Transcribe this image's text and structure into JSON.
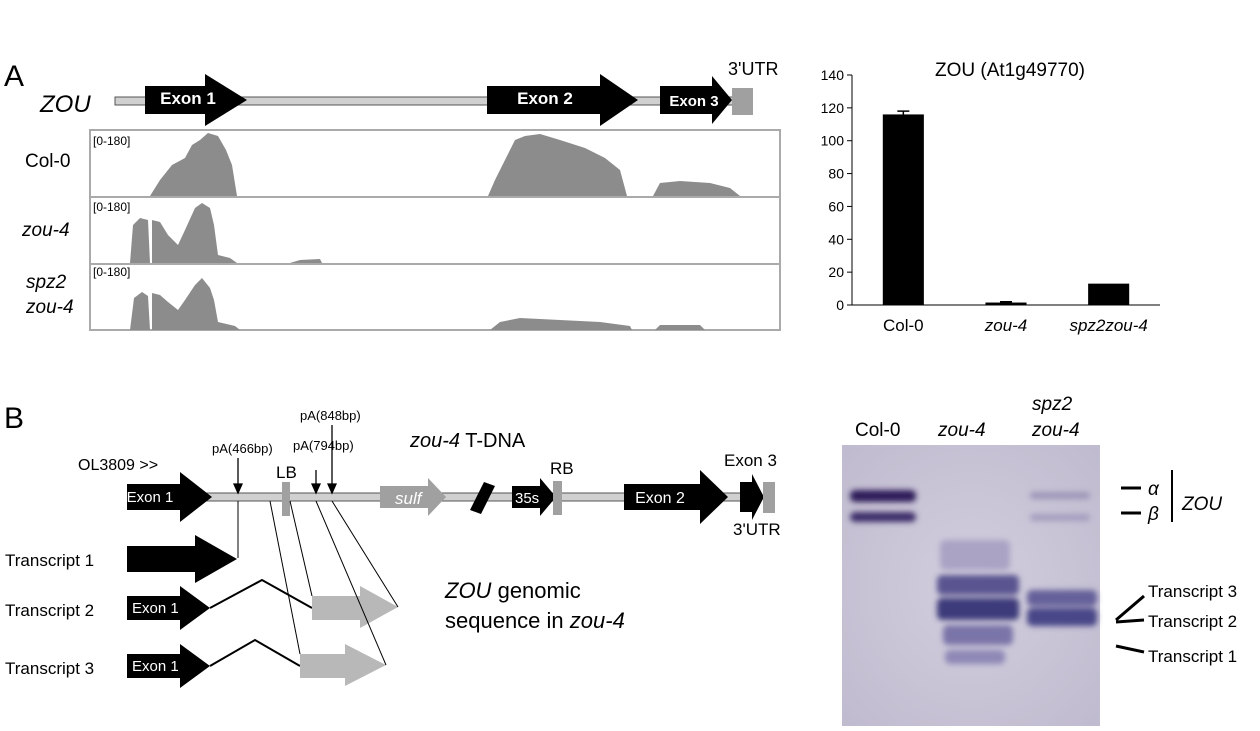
{
  "chart_data": {
    "type": "bar",
    "title": "ZOU (At1g49770)",
    "categories": [
      "Col-0",
      "zou-4",
      "spz2zou-4"
    ],
    "values": [
      116,
      1.5,
      13
    ],
    "errors": [
      2,
      0.5,
      null
    ],
    "color": "#000000",
    "ylim": [
      0,
      140
    ],
    "yticks": [
      0,
      20,
      40,
      60,
      80,
      100,
      120,
      140
    ]
  },
  "panel_a": {
    "label": "A",
    "gene": "ZOU",
    "exons": [
      "Exon 1",
      "Exon 2",
      "Exon 3"
    ],
    "utr": "3'UTR",
    "tracks": [
      {
        "name": [
          "Col-0"
        ],
        "range": "[0-180]"
      },
      {
        "name": [
          "zou-4"
        ],
        "range": "[0-180]"
      },
      {
        "name": [
          "spz2",
          "zou-4"
        ],
        "range": "[0-180]"
      }
    ]
  },
  "panel_b": {
    "label": "B",
    "primer": "OL3809 >>",
    "exon1": "Exon 1",
    "pa": [
      "pA(466bp)",
      "pA(794bp)",
      "pA(848bp)"
    ],
    "lb": "LB",
    "rb": "RB",
    "tdna_gene": "zou-4",
    "tdna": "T-DNA",
    "sulf": "sulf",
    "promoter": "35s",
    "exon2": "Exon 2",
    "exon3": "Exon 3",
    "utr": "3'UTR",
    "transcripts": [
      "Transcript 1",
      "Transcript 2",
      "Transcript 3"
    ],
    "transcript_exon": "Exon 1",
    "caption": {
      "gene": "ZOU",
      "line1": "genomic",
      "line2": "sequence in",
      "allele": "zou-4"
    },
    "gel": {
      "lanes": [
        [
          "Col-0"
        ],
        [
          "zou-4"
        ],
        [
          "spz2",
          "zou-4"
        ]
      ],
      "alpha": "α",
      "beta": "β",
      "gene": "ZOU",
      "bands": [
        "Transcript 3",
        "Transcript 2",
        "Transcript 1"
      ]
    }
  }
}
